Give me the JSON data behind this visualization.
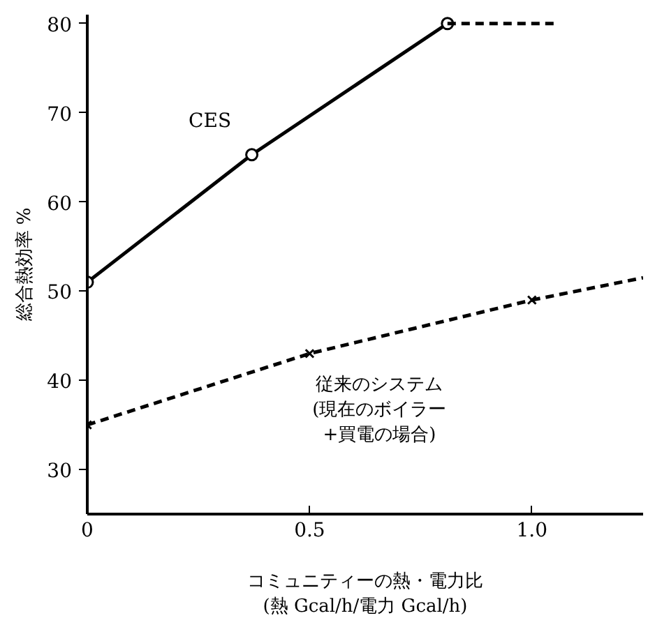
{
  "chart_data": {
    "type": "line",
    "xlabel": "コミュニティーの熱・電力比\n(熱 Gcal/h/電力 Gcal/h)",
    "ylabel": "総合熱効率 %",
    "xlim": [
      0,
      1.25
    ],
    "ylim": [
      25,
      81
    ],
    "xticks": [
      0,
      {
        "value": 0.5,
        "label": "0.5"
      },
      {
        "value": 1.0,
        "label": "1.0"
      }
    ],
    "yticks": [
      30,
      40,
      50,
      60,
      70,
      80
    ],
    "series": [
      {
        "name": "CES",
        "color": "#000000",
        "x": [
          0,
          0.37,
          0.81
        ],
        "values": [
          51,
          65.3,
          80
        ],
        "marker": "circle",
        "line_style": "solid"
      },
      {
        "color": "#000000",
        "x": [
          0.81,
          1.05
        ],
        "values": [
          80,
          80
        ],
        "marker": "none",
        "line_style": "dashed"
      },
      {
        "name": "従来のシステム\n(現在のボイラー\n+買電の場合)",
        "color": "#000000",
        "x": [
          0,
          0.5,
          1.0
        ],
        "values": [
          35,
          43,
          49
        ],
        "marker": "cross",
        "line_style": "dashed"
      },
      {
        "color": "#000000",
        "x": [
          1.0,
          1.25
        ],
        "values": [
          49,
          51.5
        ],
        "marker": "none",
        "line_style": "dashed"
      }
    ]
  }
}
